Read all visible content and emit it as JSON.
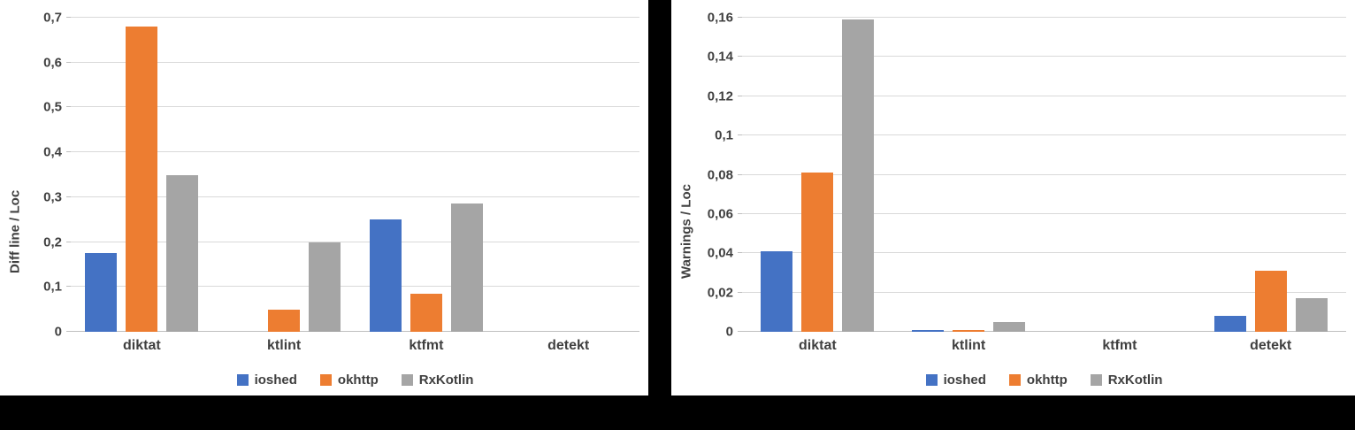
{
  "page": {
    "background_color": "#000000",
    "panel_color": "#ffffff"
  },
  "colors": {
    "ioshed": "#4472C4",
    "okhttp": "#ED7D31",
    "RxKotlin": "#A5A5A5",
    "gridline": "#d9d9d9",
    "axis": "#bfbfbf",
    "text": "#404040"
  },
  "chart_data": [
    {
      "type": "bar",
      "title": "",
      "ylabel": "Diff line / Loc",
      "xlabel": "",
      "categories": [
        "diktat",
        "ktlint",
        "ktfmt",
        "detekt"
      ],
      "series": [
        {
          "name": "ioshed",
          "color": "#4472C4",
          "values": [
            0.175,
            0,
            0.25,
            0
          ]
        },
        {
          "name": "okhttp",
          "color": "#ED7D31",
          "values": [
            0.68,
            0.05,
            0.085,
            0
          ]
        },
        {
          "name": "RxKotlin",
          "color": "#A5A5A5",
          "values": [
            0.35,
            0.2,
            0.285,
            0
          ]
        }
      ],
      "ylim": [
        0,
        0.7
      ],
      "yticks": [
        0,
        0.1,
        0.2,
        0.3,
        0.4,
        0.5,
        0.6,
        0.7
      ],
      "ytick_labels": [
        "0",
        "0,1",
        "0,2",
        "0,3",
        "0,4",
        "0,5",
        "0,6",
        "0,7"
      ],
      "grid": true,
      "legend_position": "bottom",
      "legend": [
        "ioshed",
        "okhttp",
        "RxKotlin"
      ]
    },
    {
      "type": "bar",
      "title": "",
      "ylabel": "Warnings / Loc",
      "xlabel": "",
      "categories": [
        "diktat",
        "ktlint",
        "ktfmt",
        "detekt"
      ],
      "series": [
        {
          "name": "ioshed",
          "color": "#4472C4",
          "values": [
            0.041,
            0.001,
            0,
            0.008
          ]
        },
        {
          "name": "okhttp",
          "color": "#ED7D31",
          "values": [
            0.081,
            0.001,
            0,
            0.031
          ]
        },
        {
          "name": "RxKotlin",
          "color": "#A5A5A5",
          "values": [
            0.159,
            0.005,
            0,
            0.017
          ]
        }
      ],
      "ylim": [
        0,
        0.16
      ],
      "yticks": [
        0,
        0.02,
        0.04,
        0.06,
        0.08,
        0.1,
        0.12,
        0.14,
        0.16
      ],
      "ytick_labels": [
        "0",
        "0,02",
        "0,04",
        "0,06",
        "0,08",
        "0,1",
        "0,12",
        "0,14",
        "0,16"
      ],
      "grid": true,
      "legend_position": "bottom",
      "legend": [
        "ioshed",
        "okhttp",
        "RxKotlin"
      ]
    }
  ]
}
